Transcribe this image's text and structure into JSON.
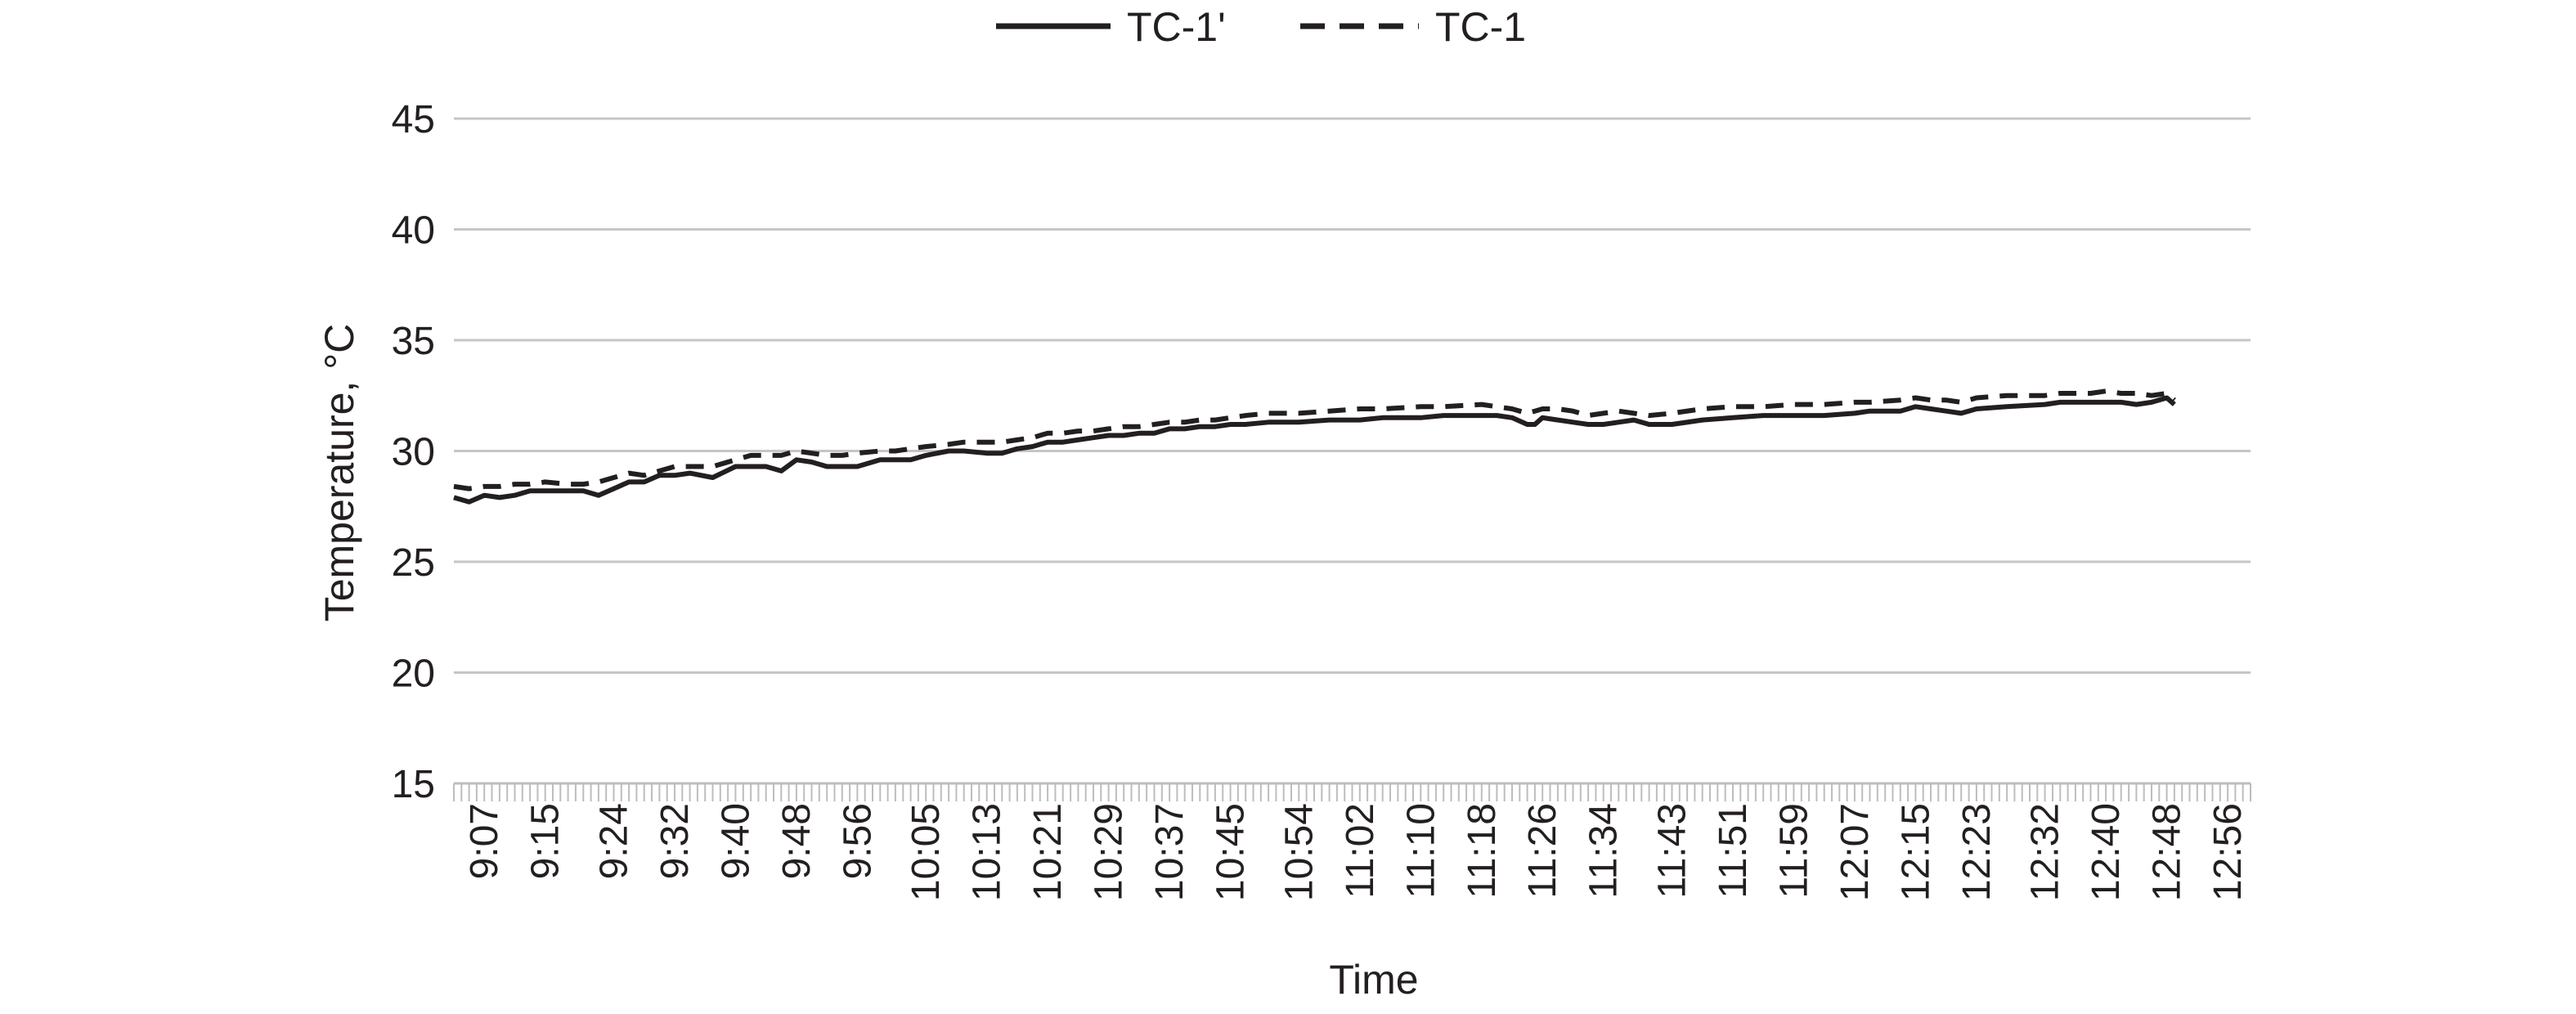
{
  "chart_data": {
    "type": "line",
    "title": "",
    "xlabel": "Time",
    "ylabel": "Temperature, °C",
    "ylim": [
      15,
      45
    ],
    "yticks": [
      15,
      20,
      25,
      30,
      35,
      40,
      45
    ],
    "xticks": [
      "9:07",
      "9:15",
      "9:24",
      "9:32",
      "9:40",
      "9:48",
      "9:56",
      "10:05",
      "10:13",
      "10:21",
      "10:29",
      "10:37",
      "10:45",
      "10:54",
      "11:02",
      "11:10",
      "11:18",
      "11:26",
      "11:34",
      "11:43",
      "11:51",
      "11:59",
      "12:07",
      "12:15",
      "12:23",
      "12:32",
      "12:40",
      "12:48",
      "12:56"
    ],
    "grid": true,
    "legend_position": "top-center",
    "series": [
      {
        "name": "TC-1'",
        "style": "solid",
        "color": "#231f20",
        "points": [
          [
            "9:03",
            27.9
          ],
          [
            "9:05",
            27.7
          ],
          [
            "9:07",
            28.0
          ],
          [
            "9:09",
            27.9
          ],
          [
            "9:11",
            28.0
          ],
          [
            "9:13",
            28.2
          ],
          [
            "9:15",
            28.2
          ],
          [
            "9:18",
            28.2
          ],
          [
            "9:20",
            28.2
          ],
          [
            "9:22",
            28.0
          ],
          [
            "9:24",
            28.3
          ],
          [
            "9:26",
            28.6
          ],
          [
            "9:28",
            28.6
          ],
          [
            "9:30",
            28.9
          ],
          [
            "9:32",
            28.9
          ],
          [
            "9:34",
            29.0
          ],
          [
            "9:37",
            28.8
          ],
          [
            "9:40",
            29.3
          ],
          [
            "9:42",
            29.3
          ],
          [
            "9:44",
            29.3
          ],
          [
            "9:46",
            29.1
          ],
          [
            "9:48",
            29.6
          ],
          [
            "9:50",
            29.5
          ],
          [
            "9:52",
            29.3
          ],
          [
            "9:54",
            29.3
          ],
          [
            "9:56",
            29.3
          ],
          [
            "9:59",
            29.6
          ],
          [
            "10:01",
            29.6
          ],
          [
            "10:03",
            29.6
          ],
          [
            "10:05",
            29.8
          ],
          [
            "10:08",
            30.0
          ],
          [
            "10:10",
            30.0
          ],
          [
            "10:13",
            29.9
          ],
          [
            "10:15",
            29.9
          ],
          [
            "10:17",
            30.1
          ],
          [
            "10:19",
            30.2
          ],
          [
            "10:21",
            30.4
          ],
          [
            "10:23",
            30.4
          ],
          [
            "10:25",
            30.5
          ],
          [
            "10:27",
            30.6
          ],
          [
            "10:29",
            30.7
          ],
          [
            "10:31",
            30.7
          ],
          [
            "10:33",
            30.8
          ],
          [
            "10:35",
            30.8
          ],
          [
            "10:37",
            31.0
          ],
          [
            "10:39",
            31.0
          ],
          [
            "10:41",
            31.1
          ],
          [
            "10:43",
            31.1
          ],
          [
            "10:45",
            31.2
          ],
          [
            "10:47",
            31.2
          ],
          [
            "10:50",
            31.3
          ],
          [
            "10:54",
            31.3
          ],
          [
            "10:58",
            31.4
          ],
          [
            "11:02",
            31.4
          ],
          [
            "11:05",
            31.5
          ],
          [
            "11:10",
            31.5
          ],
          [
            "11:13",
            31.6
          ],
          [
            "11:18",
            31.6
          ],
          [
            "11:20",
            31.6
          ],
          [
            "11:22",
            31.5
          ],
          [
            "11:24",
            31.2
          ],
          [
            "11:25",
            31.2
          ],
          [
            "11:26",
            31.5
          ],
          [
            "11:28",
            31.4
          ],
          [
            "11:30",
            31.3
          ],
          [
            "11:32",
            31.2
          ],
          [
            "11:34",
            31.2
          ],
          [
            "11:36",
            31.3
          ],
          [
            "11:38",
            31.4
          ],
          [
            "11:40",
            31.2
          ],
          [
            "11:43",
            31.2
          ],
          [
            "11:47",
            31.4
          ],
          [
            "11:51",
            31.5
          ],
          [
            "11:55",
            31.6
          ],
          [
            "11:59",
            31.6
          ],
          [
            "12:03",
            31.6
          ],
          [
            "12:07",
            31.7
          ],
          [
            "12:09",
            31.8
          ],
          [
            "12:13",
            31.8
          ],
          [
            "12:15",
            32.0
          ],
          [
            "12:17",
            31.9
          ],
          [
            "12:19",
            31.8
          ],
          [
            "12:21",
            31.7
          ],
          [
            "12:23",
            31.9
          ],
          [
            "12:27",
            32.0
          ],
          [
            "12:32",
            32.1
          ],
          [
            "12:34",
            32.2
          ],
          [
            "12:38",
            32.2
          ],
          [
            "12:40",
            32.2
          ],
          [
            "12:42",
            32.2
          ],
          [
            "12:44",
            32.1
          ],
          [
            "12:46",
            32.2
          ],
          [
            "12:48",
            32.4
          ],
          [
            "12:49",
            32.1
          ]
        ]
      },
      {
        "name": "TC-1",
        "style": "dashed",
        "color": "#231f20",
        "points": [
          [
            "9:03",
            28.4
          ],
          [
            "9:05",
            28.3
          ],
          [
            "9:07",
            28.4
          ],
          [
            "9:09",
            28.4
          ],
          [
            "9:11",
            28.5
          ],
          [
            "9:13",
            28.5
          ],
          [
            "9:15",
            28.6
          ],
          [
            "9:18",
            28.5
          ],
          [
            "9:20",
            28.5
          ],
          [
            "9:22",
            28.6
          ],
          [
            "9:24",
            28.8
          ],
          [
            "9:26",
            29.0
          ],
          [
            "9:28",
            28.9
          ],
          [
            "9:30",
            29.1
          ],
          [
            "9:32",
            29.3
          ],
          [
            "9:34",
            29.3
          ],
          [
            "9:37",
            29.3
          ],
          [
            "9:40",
            29.6
          ],
          [
            "9:42",
            29.8
          ],
          [
            "9:44",
            29.8
          ],
          [
            "9:46",
            29.8
          ],
          [
            "9:48",
            30.0
          ],
          [
            "9:50",
            29.9
          ],
          [
            "9:52",
            29.8
          ],
          [
            "9:54",
            29.8
          ],
          [
            "9:56",
            29.9
          ],
          [
            "9:59",
            30.0
          ],
          [
            "10:01",
            30.0
          ],
          [
            "10:03",
            30.1
          ],
          [
            "10:05",
            30.2
          ],
          [
            "10:08",
            30.3
          ],
          [
            "10:10",
            30.4
          ],
          [
            "10:13",
            30.4
          ],
          [
            "10:15",
            30.4
          ],
          [
            "10:17",
            30.5
          ],
          [
            "10:19",
            30.6
          ],
          [
            "10:21",
            30.8
          ],
          [
            "10:23",
            30.8
          ],
          [
            "10:25",
            30.9
          ],
          [
            "10:27",
            30.9
          ],
          [
            "10:29",
            31.0
          ],
          [
            "10:31",
            31.1
          ],
          [
            "10:33",
            31.1
          ],
          [
            "10:35",
            31.2
          ],
          [
            "10:37",
            31.3
          ],
          [
            "10:39",
            31.3
          ],
          [
            "10:41",
            31.4
          ],
          [
            "10:43",
            31.4
          ],
          [
            "10:45",
            31.5
          ],
          [
            "10:47",
            31.6
          ],
          [
            "10:50",
            31.7
          ],
          [
            "10:54",
            31.7
          ],
          [
            "10:58",
            31.8
          ],
          [
            "11:02",
            31.9
          ],
          [
            "11:05",
            31.9
          ],
          [
            "11:10",
            32.0
          ],
          [
            "11:13",
            32.0
          ],
          [
            "11:18",
            32.1
          ],
          [
            "11:20",
            32.0
          ],
          [
            "11:22",
            31.9
          ],
          [
            "11:24",
            31.7
          ],
          [
            "11:25",
            31.8
          ],
          [
            "11:26",
            31.9
          ],
          [
            "11:28",
            31.9
          ],
          [
            "11:30",
            31.8
          ],
          [
            "11:32",
            31.6
          ],
          [
            "11:34",
            31.7
          ],
          [
            "11:36",
            31.8
          ],
          [
            "11:38",
            31.7
          ],
          [
            "11:40",
            31.6
          ],
          [
            "11:43",
            31.7
          ],
          [
            "11:47",
            31.9
          ],
          [
            "11:51",
            32.0
          ],
          [
            "11:55",
            32.0
          ],
          [
            "11:59",
            32.1
          ],
          [
            "12:03",
            32.1
          ],
          [
            "12:07",
            32.2
          ],
          [
            "12:09",
            32.2
          ],
          [
            "12:13",
            32.3
          ],
          [
            "12:15",
            32.4
          ],
          [
            "12:17",
            32.3
          ],
          [
            "12:19",
            32.3
          ],
          [
            "12:21",
            32.2
          ],
          [
            "12:23",
            32.4
          ],
          [
            "12:27",
            32.5
          ],
          [
            "12:32",
            32.5
          ],
          [
            "12:34",
            32.6
          ],
          [
            "12:38",
            32.6
          ],
          [
            "12:40",
            32.7
          ],
          [
            "12:42",
            32.6
          ],
          [
            "12:44",
            32.6
          ],
          [
            "12:46",
            32.5
          ],
          [
            "12:48",
            32.6
          ],
          [
            "12:49",
            32.3
          ]
        ]
      }
    ]
  }
}
